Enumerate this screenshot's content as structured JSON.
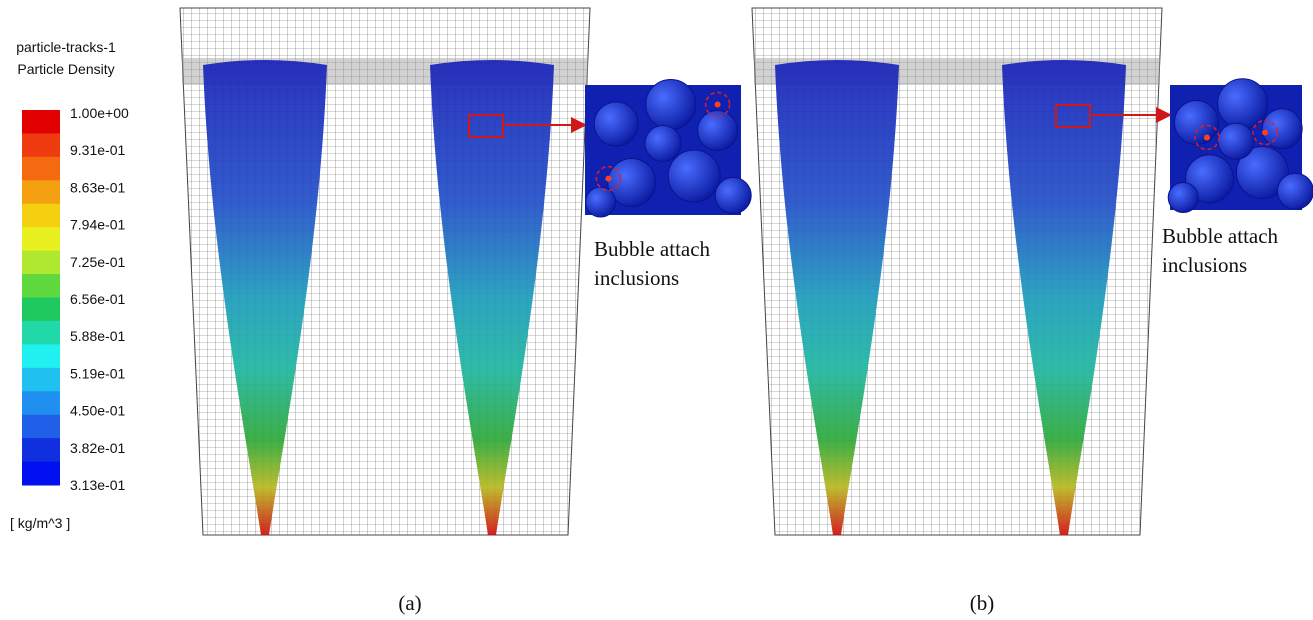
{
  "legend": {
    "title": [
      "particle-tracks-1",
      "Particle Density"
    ],
    "ticks": [
      "1.00e+00",
      "9.31e-01",
      "8.63e-01",
      "7.94e-01",
      "7.25e-01",
      "6.56e-01",
      "5.88e-01",
      "5.19e-01",
      "4.50e-01",
      "3.82e-01",
      "3.13e-01"
    ],
    "unit": "[ kg/m^3 ]"
  },
  "panels": [
    {
      "label": "(a)",
      "annotation": [
        "Bubble attach",
        "inclusions"
      ]
    },
    {
      "label": "(b)",
      "annotation": [
        "Bubble attach",
        "inclusions"
      ]
    }
  ]
}
